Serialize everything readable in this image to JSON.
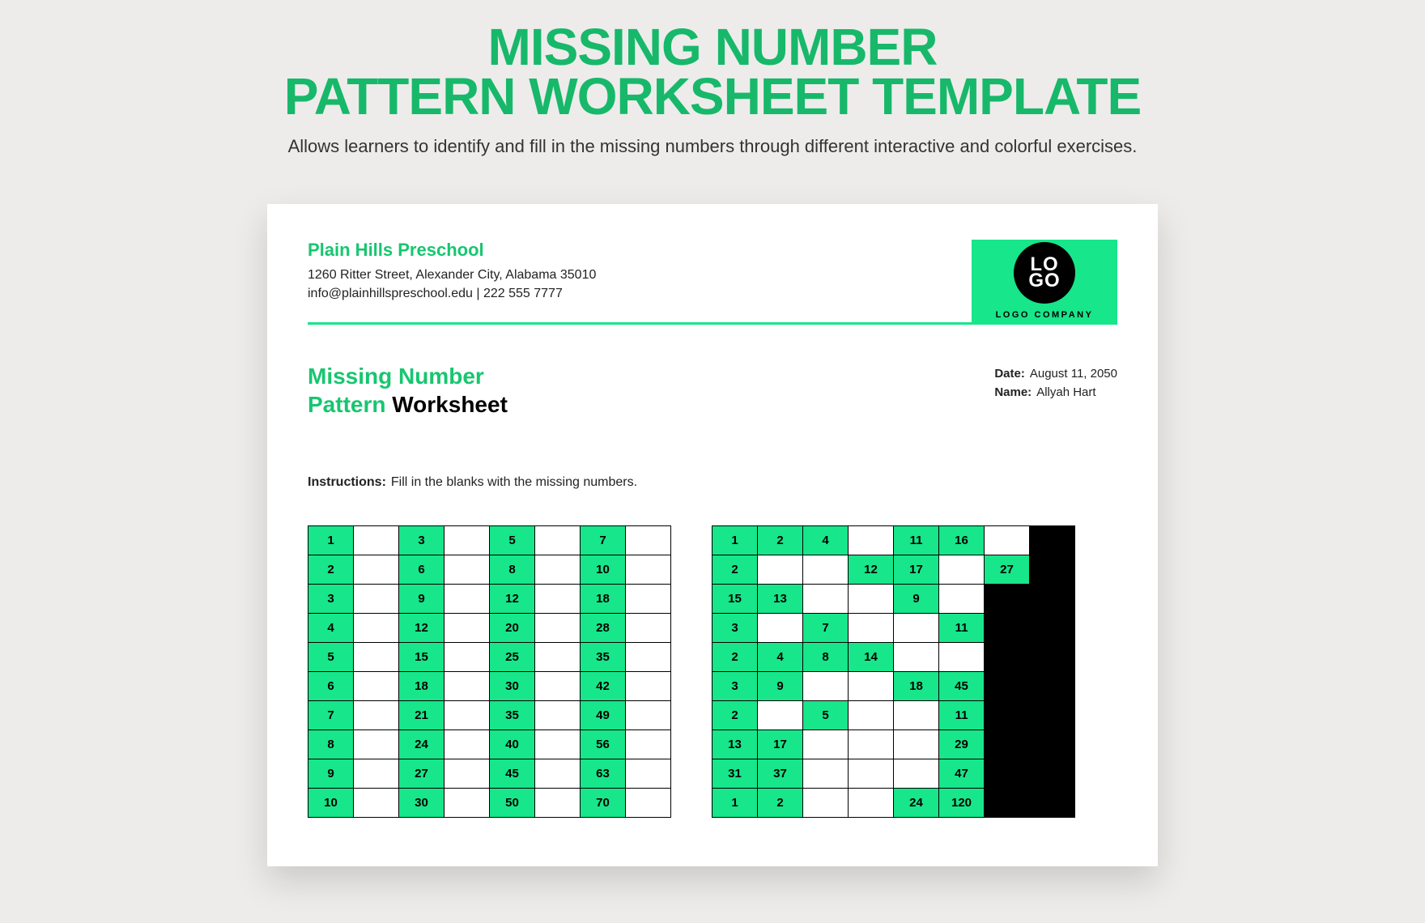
{
  "hero": {
    "line1": "MISSING NUMBER",
    "line2": "PATTERN WORKSHEET TEMPLATE",
    "sub": "Allows learners to identify and fill in the missing numbers through different interactive and colorful exercises."
  },
  "org": {
    "name": "Plain Hills Preschool",
    "address": "1260 Ritter Street, Alexander City, Alabama 35010",
    "contact": "info@plainhillspreschool.edu | 222 555 7777"
  },
  "logo": {
    "line1": "LO",
    "line2": "GO",
    "company": "LOGO COMPANY"
  },
  "title": {
    "green1": "Missing Number",
    "green2": "Pattern",
    "black": "Worksheet"
  },
  "meta": {
    "date_label": "Date:",
    "date": "August 11, 2050",
    "name_label": "Name:",
    "name": "Allyah Hart"
  },
  "instructions_label": "Instructions:",
  "instructions": "Fill in the blanks with the missing numbers.",
  "grid1": {
    "columns": 8,
    "cell_colors": {
      "given": "#17e68a",
      "blank": "#ffffff"
    },
    "rows": [
      [
        {
          "v": "1",
          "c": "g"
        },
        {
          "v": "",
          "c": "w"
        },
        {
          "v": "3",
          "c": "g"
        },
        {
          "v": "",
          "c": "w"
        },
        {
          "v": "5",
          "c": "g"
        },
        {
          "v": "",
          "c": "w"
        },
        {
          "v": "7",
          "c": "g"
        },
        {
          "v": "",
          "c": "w"
        }
      ],
      [
        {
          "v": "2",
          "c": "g"
        },
        {
          "v": "",
          "c": "w"
        },
        {
          "v": "6",
          "c": "g"
        },
        {
          "v": "",
          "c": "w"
        },
        {
          "v": "8",
          "c": "g"
        },
        {
          "v": "",
          "c": "w"
        },
        {
          "v": "10",
          "c": "g"
        },
        {
          "v": "",
          "c": "w"
        }
      ],
      [
        {
          "v": "3",
          "c": "g"
        },
        {
          "v": "",
          "c": "w"
        },
        {
          "v": "9",
          "c": "g"
        },
        {
          "v": "",
          "c": "w"
        },
        {
          "v": "12",
          "c": "g"
        },
        {
          "v": "",
          "c": "w"
        },
        {
          "v": "18",
          "c": "g"
        },
        {
          "v": "",
          "c": "w"
        }
      ],
      [
        {
          "v": "4",
          "c": "g"
        },
        {
          "v": "",
          "c": "w"
        },
        {
          "v": "12",
          "c": "g"
        },
        {
          "v": "",
          "c": "w"
        },
        {
          "v": "20",
          "c": "g"
        },
        {
          "v": "",
          "c": "w"
        },
        {
          "v": "28",
          "c": "g"
        },
        {
          "v": "",
          "c": "w"
        }
      ],
      [
        {
          "v": "5",
          "c": "g"
        },
        {
          "v": "",
          "c": "w"
        },
        {
          "v": "15",
          "c": "g"
        },
        {
          "v": "",
          "c": "w"
        },
        {
          "v": "25",
          "c": "g"
        },
        {
          "v": "",
          "c": "w"
        },
        {
          "v": "35",
          "c": "g"
        },
        {
          "v": "",
          "c": "w"
        }
      ],
      [
        {
          "v": "6",
          "c": "g"
        },
        {
          "v": "",
          "c": "w"
        },
        {
          "v": "18",
          "c": "g"
        },
        {
          "v": "",
          "c": "w"
        },
        {
          "v": "30",
          "c": "g"
        },
        {
          "v": "",
          "c": "w"
        },
        {
          "v": "42",
          "c": "g"
        },
        {
          "v": "",
          "c": "w"
        }
      ],
      [
        {
          "v": "7",
          "c": "g"
        },
        {
          "v": "",
          "c": "w"
        },
        {
          "v": "21",
          "c": "g"
        },
        {
          "v": "",
          "c": "w"
        },
        {
          "v": "35",
          "c": "g"
        },
        {
          "v": "",
          "c": "w"
        },
        {
          "v": "49",
          "c": "g"
        },
        {
          "v": "",
          "c": "w"
        }
      ],
      [
        {
          "v": "8",
          "c": "g"
        },
        {
          "v": "",
          "c": "w"
        },
        {
          "v": "24",
          "c": "g"
        },
        {
          "v": "",
          "c": "w"
        },
        {
          "v": "40",
          "c": "g"
        },
        {
          "v": "",
          "c": "w"
        },
        {
          "v": "56",
          "c": "g"
        },
        {
          "v": "",
          "c": "w"
        }
      ],
      [
        {
          "v": "9",
          "c": "g"
        },
        {
          "v": "",
          "c": "w"
        },
        {
          "v": "27",
          "c": "g"
        },
        {
          "v": "",
          "c": "w"
        },
        {
          "v": "45",
          "c": "g"
        },
        {
          "v": "",
          "c": "w"
        },
        {
          "v": "63",
          "c": "g"
        },
        {
          "v": "",
          "c": "w"
        }
      ],
      [
        {
          "v": "10",
          "c": "g"
        },
        {
          "v": "",
          "c": "w"
        },
        {
          "v": "30",
          "c": "g"
        },
        {
          "v": "",
          "c": "w"
        },
        {
          "v": "50",
          "c": "g"
        },
        {
          "v": "",
          "c": "w"
        },
        {
          "v": "70",
          "c": "g"
        },
        {
          "v": "",
          "c": "w"
        }
      ]
    ]
  },
  "grid2": {
    "columns": 8,
    "cell_colors": {
      "given": "#17e68a",
      "blank": "#ffffff",
      "black": "#000000"
    },
    "rows": [
      [
        {
          "v": "1",
          "c": "g"
        },
        {
          "v": "2",
          "c": "g"
        },
        {
          "v": "4",
          "c": "g"
        },
        {
          "v": "",
          "c": "w"
        },
        {
          "v": "11",
          "c": "g"
        },
        {
          "v": "16",
          "c": "g"
        },
        {
          "v": "",
          "c": "w"
        },
        {
          "v": "",
          "c": "b"
        }
      ],
      [
        {
          "v": "2",
          "c": "g"
        },
        {
          "v": "",
          "c": "w"
        },
        {
          "v": "",
          "c": "w"
        },
        {
          "v": "12",
          "c": "g"
        },
        {
          "v": "17",
          "c": "g"
        },
        {
          "v": "",
          "c": "w"
        },
        {
          "v": "27",
          "c": "g"
        },
        {
          "v": "",
          "c": "b"
        }
      ],
      [
        {
          "v": "15",
          "c": "g"
        },
        {
          "v": "13",
          "c": "g"
        },
        {
          "v": "",
          "c": "w"
        },
        {
          "v": "",
          "c": "w"
        },
        {
          "v": "9",
          "c": "g"
        },
        {
          "v": "",
          "c": "w"
        },
        {
          "v": "",
          "c": "b"
        },
        {
          "v": "",
          "c": "b"
        }
      ],
      [
        {
          "v": "3",
          "c": "g"
        },
        {
          "v": "",
          "c": "w"
        },
        {
          "v": "7",
          "c": "g"
        },
        {
          "v": "",
          "c": "w"
        },
        {
          "v": "",
          "c": "w"
        },
        {
          "v": "11",
          "c": "g"
        },
        {
          "v": "",
          "c": "b"
        },
        {
          "v": "",
          "c": "b"
        }
      ],
      [
        {
          "v": "2",
          "c": "g"
        },
        {
          "v": "4",
          "c": "g"
        },
        {
          "v": "8",
          "c": "g"
        },
        {
          "v": "14",
          "c": "g"
        },
        {
          "v": "",
          "c": "w"
        },
        {
          "v": "",
          "c": "w"
        },
        {
          "v": "",
          "c": "b"
        },
        {
          "v": "",
          "c": "b"
        }
      ],
      [
        {
          "v": "3",
          "c": "g"
        },
        {
          "v": "9",
          "c": "g"
        },
        {
          "v": "",
          "c": "w"
        },
        {
          "v": "",
          "c": "w"
        },
        {
          "v": "18",
          "c": "g"
        },
        {
          "v": "45",
          "c": "g"
        },
        {
          "v": "",
          "c": "b"
        },
        {
          "v": "",
          "c": "b"
        }
      ],
      [
        {
          "v": "2",
          "c": "g"
        },
        {
          "v": "",
          "c": "w"
        },
        {
          "v": "5",
          "c": "g"
        },
        {
          "v": "",
          "c": "w"
        },
        {
          "v": "",
          "c": "w"
        },
        {
          "v": "11",
          "c": "g"
        },
        {
          "v": "",
          "c": "b"
        },
        {
          "v": "",
          "c": "b"
        }
      ],
      [
        {
          "v": "13",
          "c": "g"
        },
        {
          "v": "17",
          "c": "g"
        },
        {
          "v": "",
          "c": "w"
        },
        {
          "v": "",
          "c": "w"
        },
        {
          "v": "",
          "c": "w"
        },
        {
          "v": "29",
          "c": "g"
        },
        {
          "v": "",
          "c": "b"
        },
        {
          "v": "",
          "c": "b"
        }
      ],
      [
        {
          "v": "31",
          "c": "g"
        },
        {
          "v": "37",
          "c": "g"
        },
        {
          "v": "",
          "c": "w"
        },
        {
          "v": "",
          "c": "w"
        },
        {
          "v": "",
          "c": "w"
        },
        {
          "v": "47",
          "c": "g"
        },
        {
          "v": "",
          "c": "b"
        },
        {
          "v": "",
          "c": "b"
        }
      ],
      [
        {
          "v": "1",
          "c": "g"
        },
        {
          "v": "2",
          "c": "g"
        },
        {
          "v": "",
          "c": "w"
        },
        {
          "v": "",
          "c": "w"
        },
        {
          "v": "24",
          "c": "g"
        },
        {
          "v": "120",
          "c": "g"
        },
        {
          "v": "",
          "c": "b"
        },
        {
          "v": "",
          "c": "b"
        }
      ]
    ]
  }
}
